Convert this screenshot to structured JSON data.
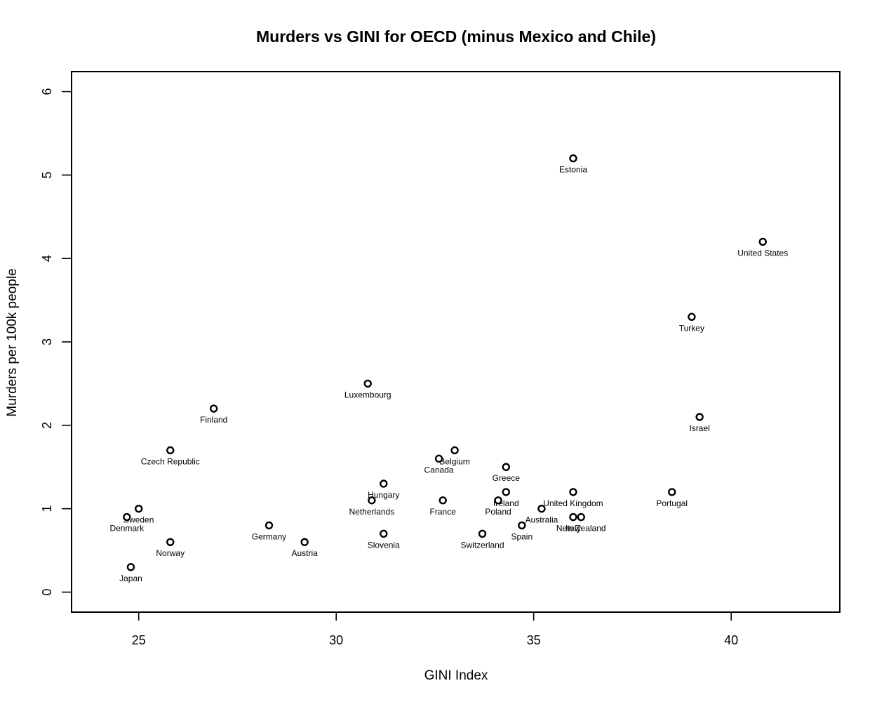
{
  "chart_data": {
    "type": "scatter",
    "title": "Murders vs GINI for OECD (minus Mexico and Chile)",
    "xlabel": "GINI Index",
    "ylabel": "Murders per 100k people",
    "xlim": [
      23.3,
      42.75
    ],
    "ylim": [
      -0.24,
      6.24
    ],
    "xticks": [
      25,
      30,
      35,
      40
    ],
    "yticks": [
      0,
      1,
      2,
      3,
      4,
      5,
      6
    ],
    "grid": false,
    "legend": "none",
    "marker": "open-circle",
    "points": [
      {
        "label": "Estonia",
        "x": 36.0,
        "y": 5.2
      },
      {
        "label": "United States",
        "x": 40.8,
        "y": 4.2
      },
      {
        "label": "Turkey",
        "x": 39.0,
        "y": 3.3
      },
      {
        "label": "Luxembourg",
        "x": 30.8,
        "y": 2.5
      },
      {
        "label": "Finland",
        "x": 26.9,
        "y": 2.2
      },
      {
        "label": "Israel",
        "x": 39.2,
        "y": 2.1
      },
      {
        "label": "Czech Republic",
        "x": 25.8,
        "y": 1.7
      },
      {
        "label": "Belgium",
        "x": 33.0,
        "y": 1.7
      },
      {
        "label": "Canada",
        "x": 32.6,
        "y": 1.6
      },
      {
        "label": "Greece",
        "x": 34.3,
        "y": 1.5
      },
      {
        "label": "Hungary",
        "x": 31.2,
        "y": 1.3
      },
      {
        "label": "Ireland",
        "x": 34.3,
        "y": 1.2
      },
      {
        "label": "United Kingdom",
        "x": 36.0,
        "y": 1.2
      },
      {
        "label": "Portugal",
        "x": 38.5,
        "y": 1.2
      },
      {
        "label": "Netherlands",
        "x": 30.9,
        "y": 1.1
      },
      {
        "label": "France",
        "x": 32.7,
        "y": 1.1
      },
      {
        "label": "Poland",
        "x": 34.1,
        "y": 1.1
      },
      {
        "label": "Sweden",
        "x": 25.0,
        "y": 1.0
      },
      {
        "label": "Australia",
        "x": 35.2,
        "y": 1.0
      },
      {
        "label": "Denmark",
        "x": 24.7,
        "y": 0.9
      },
      {
        "label": "Italy",
        "x": 36.0,
        "y": 0.9
      },
      {
        "label": "New Zealand",
        "x": 36.2,
        "y": 0.9
      },
      {
        "label": "Germany",
        "x": 28.3,
        "y": 0.8
      },
      {
        "label": "Spain",
        "x": 34.7,
        "y": 0.8
      },
      {
        "label": "Slovenia",
        "x": 31.2,
        "y": 0.7
      },
      {
        "label": "Switzerland",
        "x": 33.7,
        "y": 0.7
      },
      {
        "label": "Norway",
        "x": 25.8,
        "y": 0.6
      },
      {
        "label": "Austria",
        "x": 29.2,
        "y": 0.6
      },
      {
        "label": "Japan",
        "x": 24.8,
        "y": 0.3
      }
    ]
  }
}
